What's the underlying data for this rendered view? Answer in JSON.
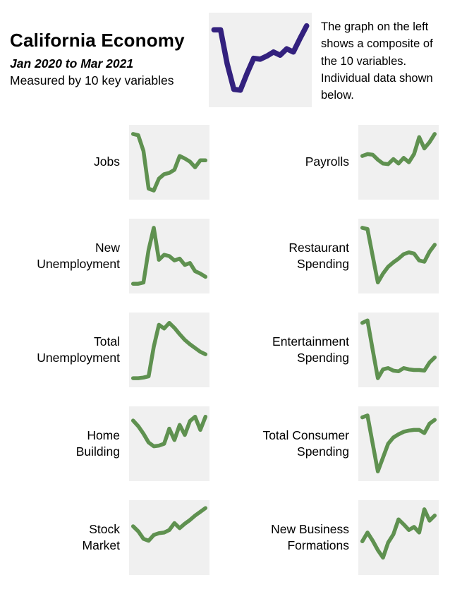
{
  "header": {
    "title": "California Economy",
    "subtitle": "Jan 2020 to Mar 2021",
    "tagline": "Measured by 10 key variables"
  },
  "note": {
    "text": "The graph on the left shows a composite of the 10 variables. Individual data shown below."
  },
  "colors": {
    "composite_line": "#33217e",
    "spark_line": "#5f9150",
    "chart_bg": "#f0f0f0",
    "text": "#000000"
  },
  "chart_data": {
    "type": "line",
    "x_range": "Jan 2020 to Mar 2021",
    "points_per_series": 15,
    "value_scale": "relative index 0-100, estimated from pixels (no axes, ticks or gridlines shown)",
    "legend": "none",
    "series": [
      {
        "id": "composite",
        "label_lines": [],
        "name": "Composite of the 10 variables",
        "color": "#33217e",
        "stroke_width": 7.5,
        "values": [
          88,
          88,
          45,
          13,
          12,
          33,
          52,
          51,
          55,
          60,
          56,
          64,
          60,
          77,
          93
        ]
      },
      {
        "id": "jobs",
        "label_lines": [
          "Jobs"
        ],
        "values": [
          95,
          93,
          68,
          8,
          5,
          24,
          31,
          33,
          38,
          60,
          56,
          51,
          42,
          53,
          53
        ]
      },
      {
        "id": "payrolls",
        "label_lines": [
          "Payrolls"
        ],
        "values": [
          60,
          63,
          62,
          54,
          48,
          47,
          55,
          48,
          57,
          50,
          63,
          90,
          72,
          82,
          95
        ]
      },
      {
        "id": "new-unemployment",
        "label_lines": [
          "New",
          "Unemployment"
        ],
        "values": [
          6,
          6,
          8,
          60,
          95,
          44,
          52,
          50,
          43,
          46,
          36,
          39,
          26,
          22,
          17
        ]
      },
      {
        "id": "restaurant-spending",
        "label_lines": [
          "Restaurant",
          "Spending"
        ],
        "values": [
          95,
          93,
          50,
          8,
          22,
          33,
          40,
          46,
          53,
          56,
          54,
          43,
          41,
          57,
          68
        ]
      },
      {
        "id": "total-unemployment",
        "label_lines": [
          "Total",
          "Unemployment"
        ],
        "values": [
          5,
          5,
          6,
          8,
          55,
          90,
          84,
          93,
          85,
          75,
          66,
          59,
          53,
          47,
          43
        ]
      },
      {
        "id": "entertainment-spending",
        "label_lines": [
          "Entertainment",
          "Spending"
        ],
        "values": [
          93,
          97,
          50,
          5,
          19,
          21,
          17,
          16,
          21,
          19,
          18,
          18,
          17,
          30,
          38
        ]
      },
      {
        "id": "home-building",
        "label_lines": [
          "Home",
          "Building"
        ],
        "values": [
          87,
          78,
          66,
          52,
          46,
          47,
          50,
          74,
          56,
          80,
          64,
          86,
          93,
          72,
          93
        ]
      },
      {
        "id": "total-consumer-spending",
        "label_lines": [
          "Total Consumer",
          "Spending"
        ],
        "values": [
          92,
          95,
          50,
          6,
          28,
          50,
          60,
          65,
          69,
          71,
          72,
          72,
          67,
          82,
          88
        ]
      },
      {
        "id": "stock-market",
        "label_lines": [
          "Stock",
          "Market"
        ],
        "values": [
          68,
          60,
          48,
          45,
          54,
          57,
          58,
          62,
          73,
          65,
          72,
          78,
          85,
          91,
          97
        ]
      },
      {
        "id": "new-business-formations",
        "label_lines": [
          "New Business",
          "Formations"
        ],
        "values": [
          44,
          58,
          45,
          30,
          18,
          42,
          55,
          79,
          71,
          62,
          67,
          58,
          95,
          77,
          85
        ]
      }
    ]
  }
}
